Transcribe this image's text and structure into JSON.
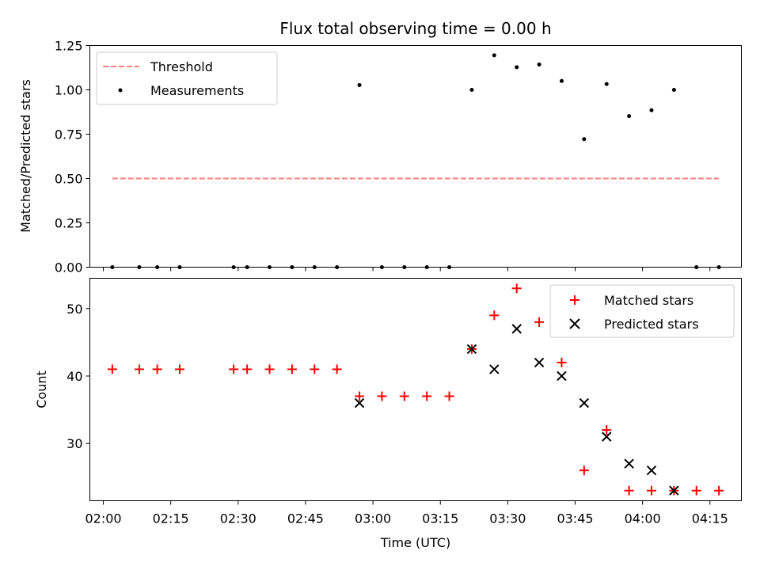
{
  "chart_data": [
    {
      "type": "scatter",
      "title": "Flux total observing time = 0.00 h",
      "xlabel": "",
      "ylabel": "Matched/Predicted stars",
      "xlim": [
        "01:57",
        "04:22"
      ],
      "ylim": [
        0,
        1.25
      ],
      "y_ticks": [
        0.0,
        0.25,
        0.5,
        0.75,
        1.0,
        1.25
      ],
      "y_tick_labels": [
        "0.00",
        "0.25",
        "0.50",
        "0.75",
        "1.00",
        "1.25"
      ],
      "x_tick_labels_shown": false,
      "legend": {
        "location": "upper left",
        "entries": [
          "Threshold",
          "Measurements"
        ]
      },
      "series": [
        {
          "name": "Threshold",
          "style": "dashed-line",
          "color": "#ff7f7f",
          "x": [
            "02:02",
            "04:17"
          ],
          "y": [
            0.5,
            0.5
          ]
        },
        {
          "name": "Measurements",
          "style": "dot",
          "color": "#000000",
          "x": [
            "02:02",
            "02:08",
            "02:12",
            "02:17",
            "02:29",
            "02:32",
            "02:37",
            "02:42",
            "02:47",
            "02:52",
            "02:57",
            "03:02",
            "03:07",
            "03:12",
            "03:17",
            "03:22",
            "03:27",
            "03:32",
            "03:37",
            "03:42",
            "03:47",
            "03:52",
            "03:57",
            "04:02",
            "04:07",
            "04:12",
            "04:17"
          ],
          "y": [
            0,
            0,
            0,
            0,
            0,
            0,
            0,
            0,
            0,
            0,
            1.027,
            0,
            0,
            0,
            0,
            1.0,
            1.195,
            1.128,
            1.143,
            1.05,
            0.722,
            1.033,
            0.852,
            0.885,
            1.0,
            0,
            0
          ]
        }
      ]
    },
    {
      "type": "scatter",
      "title": "",
      "xlabel": "Time (UTC)",
      "ylabel": "Count",
      "xlim": [
        "01:57",
        "04:22"
      ],
      "ylim": [
        21.5,
        54.5
      ],
      "y_ticks": [
        30,
        40,
        50
      ],
      "y_tick_labels": [
        "30",
        "40",
        "50"
      ],
      "x_ticks": [
        "02:00",
        "02:15",
        "02:30",
        "02:45",
        "03:00",
        "03:15",
        "03:30",
        "03:45",
        "04:00",
        "04:15"
      ],
      "legend": {
        "location": "upper right",
        "entries": [
          "Matched stars",
          "Predicted stars"
        ]
      },
      "series": [
        {
          "name": "Matched stars",
          "marker": "plus",
          "color": "#ff0000",
          "x": [
            "02:02",
            "02:08",
            "02:12",
            "02:17",
            "02:29",
            "02:32",
            "02:37",
            "02:42",
            "02:47",
            "02:52",
            "02:57",
            "03:02",
            "03:07",
            "03:12",
            "03:17",
            "03:22",
            "03:27",
            "03:32",
            "03:37",
            "03:42",
            "03:47",
            "03:52",
            "03:57",
            "04:02",
            "04:07",
            "04:12",
            "04:17"
          ],
          "y": [
            41,
            41,
            41,
            41,
            41,
            41,
            41,
            41,
            41,
            41,
            37,
            37,
            37,
            37,
            37,
            44,
            49,
            53,
            48,
            42,
            26,
            32,
            23,
            23,
            23,
            23,
            23
          ]
        },
        {
          "name": "Predicted stars",
          "marker": "x",
          "color": "#000000",
          "x": [
            "02:57",
            "03:22",
            "03:27",
            "03:32",
            "03:37",
            "03:42",
            "03:47",
            "03:52",
            "03:57",
            "04:02",
            "04:07"
          ],
          "y": [
            36,
            44,
            41,
            47,
            42,
            40,
            36,
            31,
            27,
            26,
            23
          ]
        }
      ]
    }
  ]
}
